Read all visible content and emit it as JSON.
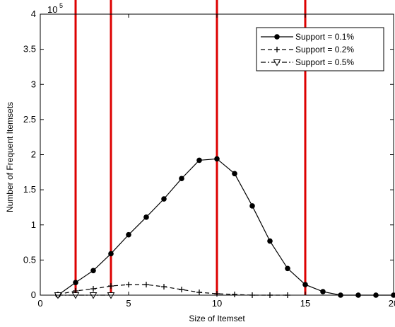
{
  "chart_data": {
    "type": "line",
    "title": "",
    "xlabel": "Size of Itemset",
    "ylabel": "Number of Frequent Itemsets",
    "y_exponent_label": "10",
    "y_exponent_power": "5",
    "xlim": [
      0,
      20
    ],
    "ylim": [
      0,
      4
    ],
    "xticks": [
      0,
      5,
      10,
      15,
      20
    ],
    "xtick_labels": [
      "0",
      "5",
      "10",
      "15",
      "20"
    ],
    "yticks": [
      0,
      0.5,
      1,
      1.5,
      2,
      2.5,
      3,
      3.5,
      4
    ],
    "ytick_labels": [
      "0",
      "0.5",
      "1",
      "1.5",
      "2",
      "2.5",
      "3",
      "3.5",
      "4"
    ],
    "grid": false,
    "legend_position": "top-right",
    "series": [
      {
        "name": "Support = 0.1%",
        "color": "#000000",
        "line_style": "solid",
        "marker": "filled-circle",
        "x": [
          1,
          2,
          3,
          4,
          5,
          6,
          7,
          8,
          9,
          10,
          11,
          12,
          13,
          14,
          15,
          16,
          17,
          18,
          19,
          20
        ],
        "values": [
          0.0,
          0.18,
          0.35,
          0.59,
          0.86,
          1.11,
          1.37,
          1.66,
          1.92,
          1.94,
          1.73,
          1.27,
          0.77,
          0.38,
          0.15,
          0.05,
          0.0,
          0.0,
          0.0,
          0.0
        ]
      },
      {
        "name": "Support = 0.2%",
        "color": "#000000",
        "line_style": "dashed",
        "marker": "plus",
        "x": [
          1,
          2,
          3,
          4,
          5,
          6,
          7,
          8,
          9,
          10,
          11,
          12,
          13,
          14
        ],
        "values": [
          0.01,
          0.06,
          0.09,
          0.13,
          0.15,
          0.15,
          0.12,
          0.08,
          0.04,
          0.02,
          0.01,
          0.0,
          0.0,
          0.0
        ]
      },
      {
        "name": "Support = 0.5%",
        "color": "#000000",
        "line_style": "dash-dot",
        "marker": "open-triangle-down",
        "x": [
          1,
          2,
          3,
          4
        ],
        "values": [
          0.0,
          0.0,
          0.0,
          0.0
        ]
      }
    ],
    "vertical_lines": {
      "color": "#dd0000",
      "x": [
        2,
        4,
        10,
        15
      ]
    }
  }
}
